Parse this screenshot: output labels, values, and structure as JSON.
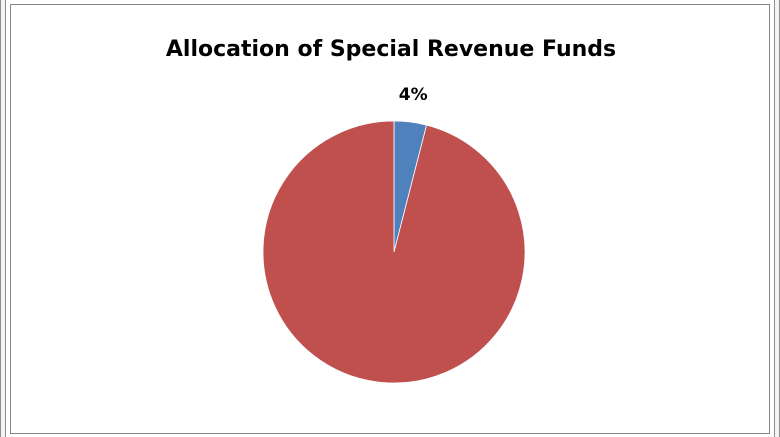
{
  "chart_data": {
    "type": "pie",
    "title": "Allocation of Special Revenue Funds",
    "slices": [
      {
        "value": 4,
        "color": "#4f81bd",
        "label": "4%"
      },
      {
        "value": 96,
        "color": "#c0504d",
        "label": ""
      }
    ],
    "legend": "none"
  }
}
